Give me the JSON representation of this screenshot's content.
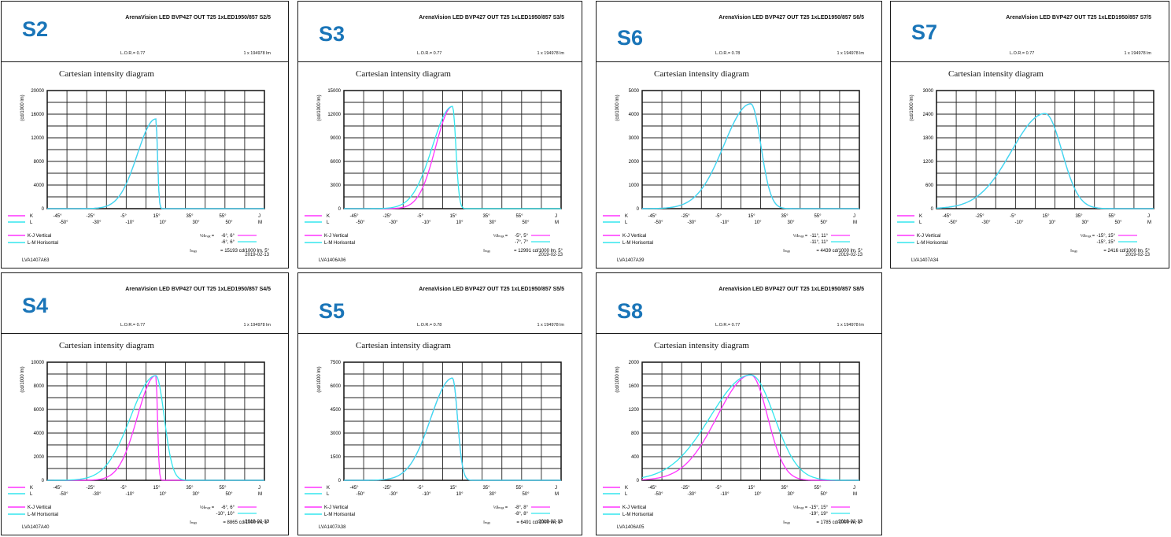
{
  "colors": {
    "vertical": "#ff33ff",
    "horizontal": "#33e6ee",
    "label": "#1a75b8"
  },
  "common": {
    "chart_title": "Cartesian intensity diagram",
    "ylabel": "(cd/1000 lm)",
    "product": "ArenaVision LED BVP427 OUT T25 1xLED1950/857",
    "flux": "1 x 194978 lm",
    "date": "2019-02-13",
    "legend_vertical": "K-J Vertical",
    "legend_horizontal": "L-M Horisontal",
    "axis_row1_letters": [
      "K",
      "J"
    ],
    "axis_row2_letters": [
      "L",
      "M"
    ],
    "axis_row1_ticks": [
      "-45°",
      "-25°",
      "-5°",
      "15°",
      "35°",
      "55°"
    ],
    "axis_row2_ticks": [
      "-50°",
      "-30°",
      "-10°",
      "10°",
      "30°",
      "50°"
    ]
  },
  "panels": [
    {
      "id": "S2",
      "suffix": "S2/5",
      "lor": "L.O.R.= 0.77",
      "code": "LVA1407A63",
      "half1": "-6°,  6°",
      "half2": "-6°,  6°",
      "imax": "= 15193 cd/1000 lm, 5°",
      "chart_data": {
        "type": "line",
        "yticks": [
          0,
          4000,
          8000,
          12000,
          16000,
          20000
        ],
        "ylim": [
          0,
          20000
        ],
        "xlim": [
          -50,
          60
        ],
        "series": [
          {
            "name": "K-J Vertical",
            "peak": 15193,
            "center": 5,
            "half_left": -6,
            "half_right": 6
          },
          {
            "name": "L-M Horisontal",
            "peak": 15193,
            "center": 5,
            "half_left": -6,
            "half_right": 6
          }
        ]
      }
    },
    {
      "id": "S3",
      "suffix": "S3/5",
      "lor": "L.O.R.= 0.77",
      "code": "LVA1406A06",
      "half1": "-5°,  5°",
      "half2": "-7°,  7°",
      "imax": "= 12991 cd/1000 lm, 5°",
      "chart_data": {
        "type": "line",
        "yticks": [
          0,
          3000,
          6000,
          9000,
          12000,
          15000
        ],
        "ylim": [
          0,
          15000
        ],
        "xlim": [
          -50,
          60
        ],
        "series": [
          {
            "name": "K-J Vertical",
            "peak": 12991,
            "center": 5,
            "half_left": -5,
            "half_right": 5
          },
          {
            "name": "L-M Horisontal",
            "peak": 12991,
            "center": 5,
            "half_left": -7,
            "half_right": 7
          }
        ]
      }
    },
    {
      "id": "S6",
      "suffix": "S6/5",
      "lor": "L.O.R.= 0.78",
      "code": "LVA1407A39",
      "half1": "-11°,  11°",
      "half2": "-11°,  11°",
      "imax": "= 4439 cd/1000 lm, 5°",
      "chart_data": {
        "type": "line",
        "yticks": [
          0,
          1000,
          2000,
          3000,
          4000,
          5000
        ],
        "ylim": [
          0,
          5000
        ],
        "xlim": [
          -50,
          60
        ],
        "series": [
          {
            "name": "K-J Vertical",
            "peak": 4439,
            "center": 5,
            "half_left": -11,
            "half_right": 11
          },
          {
            "name": "L-M Horisontal",
            "peak": 4439,
            "center": 5,
            "half_left": -11,
            "half_right": 11
          }
        ]
      }
    },
    {
      "id": "S7",
      "suffix": "S7/5",
      "lor": "L.O.R.= 0.77",
      "code": "LVA1407A34",
      "half1": "-15°,  15°",
      "half2": "-15°,  15°",
      "imax": "= 2416 cd/1000 lm, 5°",
      "chart_data": {
        "type": "line",
        "yticks": [
          0,
          600,
          1200,
          1800,
          2400,
          3000
        ],
        "ylim": [
          0,
          3000
        ],
        "xlim": [
          -50,
          60
        ],
        "series": [
          {
            "name": "K-J Vertical",
            "peak": 2416,
            "center": 5,
            "half_left": -15,
            "half_right": 15
          },
          {
            "name": "L-M Horisontal",
            "peak": 2416,
            "center": 5,
            "half_left": -15,
            "half_right": 15
          }
        ]
      }
    },
    {
      "id": "S4",
      "suffix": "S4/5",
      "lor": "L.O.R.= 0.77",
      "code": "LVA1407A40",
      "half1": "-6°,  6°",
      "half2": "-10°,  10°",
      "imax": "= 8865 cd/1000 lm, 5°",
      "chart_data": {
        "type": "line",
        "yticks": [
          0,
          2000,
          4000,
          6000,
          8000,
          10000
        ],
        "ylim": [
          0,
          10000
        ],
        "xlim": [
          -50,
          60
        ],
        "series": [
          {
            "name": "K-J Vertical",
            "peak": 8865,
            "center": 5,
            "half_left": -6,
            "half_right": 6
          },
          {
            "name": "L-M Horisontal",
            "peak": 8865,
            "center": 5,
            "half_left": -10,
            "half_right": 10
          }
        ]
      }
    },
    {
      "id": "S5",
      "suffix": "S5/5",
      "lor": "L.O.R.= 0.78",
      "code": "LVA1407A38",
      "half1": "-8°,  8°",
      "half2": "-8°,  8°",
      "imax": "= 6491 cd/1000 lm, 5°",
      "chart_data": {
        "type": "line",
        "yticks": [
          0,
          1500,
          3000,
          4500,
          6000,
          7500
        ],
        "ylim": [
          0,
          7500
        ],
        "xlim": [
          -50,
          60
        ],
        "series": [
          {
            "name": "K-J Vertical",
            "peak": 6491,
            "center": 5,
            "half_left": -8,
            "half_right": 8
          },
          {
            "name": "L-M Horisontal",
            "peak": 6491,
            "center": 5,
            "half_left": -8,
            "half_right": 8
          }
        ]
      }
    },
    {
      "id": "S8",
      "suffix": "S8/5",
      "lor": "L.O.R.= 0.77",
      "code": "LVA1406A05",
      "half1": "-15°,  15°",
      "half2": "-19°,  19°",
      "imax": "= 1785 cd/1000 lm, 5°",
      "chart_data": {
        "type": "line",
        "yticks": [
          0,
          400,
          800,
          1200,
          1600,
          2000
        ],
        "ylim": [
          0,
          2000
        ],
        "xlim": [
          -50,
          60
        ],
        "series": [
          {
            "name": "K-J Vertical",
            "peak": 1785,
            "center": 5,
            "half_left": -15,
            "half_right": 15
          },
          {
            "name": "L-M Horisontal",
            "peak": 1785,
            "center": 5,
            "half_left": -19,
            "half_right": 19
          }
        ]
      }
    }
  ]
}
